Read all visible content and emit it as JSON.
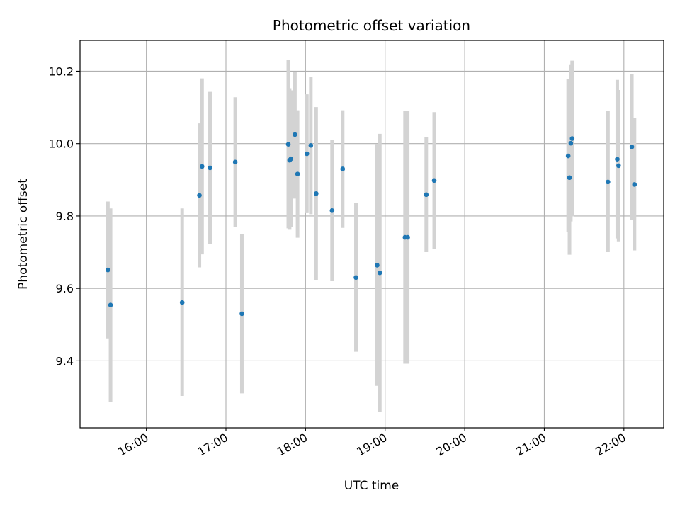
{
  "chart_data": {
    "type": "scatter",
    "title": "Photometric offset variation",
    "xlabel": "UTC time",
    "ylabel": "Photometric offset",
    "x_axis_type": "time",
    "xlim": [
      "15:10",
      "22:30"
    ],
    "ylim": [
      9.215,
      10.285
    ],
    "xticks": [
      "16:00",
      "17:00",
      "18:00",
      "19:00",
      "20:00",
      "21:00",
      "22:00"
    ],
    "yticks": [
      9.4,
      9.6,
      9.8,
      10.0,
      10.2
    ],
    "ytick_labels": [
      "9.4",
      "9.6",
      "9.8",
      "10.0",
      "10.2"
    ],
    "grid": true,
    "marker_color": "#1f77b4",
    "errorbar_color": "#d3d3d3",
    "points": [
      {
        "t": "15:31",
        "y": 9.651,
        "ymin": 9.462,
        "ymax": 9.84
      },
      {
        "t": "15:33",
        "y": 9.554,
        "ymin": 9.287,
        "ymax": 9.821
      },
      {
        "t": "16:27",
        "y": 9.561,
        "ymin": 9.303,
        "ymax": 9.821
      },
      {
        "t": "16:40",
        "y": 9.857,
        "ymin": 9.658,
        "ymax": 10.056
      },
      {
        "t": "16:42",
        "y": 9.937,
        "ymin": 9.694,
        "ymax": 10.18
      },
      {
        "t": "16:48",
        "y": 9.933,
        "ymin": 9.723,
        "ymax": 10.143
      },
      {
        "t": "17:07",
        "y": 9.949,
        "ymin": 9.77,
        "ymax": 10.128
      },
      {
        "t": "17:12",
        "y": 9.53,
        "ymin": 9.31,
        "ymax": 9.75
      },
      {
        "t": "17:47",
        "y": 9.998,
        "ymin": 9.766,
        "ymax": 10.232
      },
      {
        "t": "17:48",
        "y": 9.954,
        "ymin": 9.762,
        "ymax": 10.153
      },
      {
        "t": "17:49",
        "y": 9.958,
        "ymin": 9.77,
        "ymax": 10.147
      },
      {
        "t": "17:52",
        "y": 10.025,
        "ymin": 9.848,
        "ymax": 10.198
      },
      {
        "t": "17:54",
        "y": 9.916,
        "ymin": 9.74,
        "ymax": 10.092
      },
      {
        "t": "18:01",
        "y": 9.972,
        "ymin": 9.808,
        "ymax": 10.136
      },
      {
        "t": "18:04",
        "y": 9.995,
        "ymin": 9.805,
        "ymax": 10.185
      },
      {
        "t": "18:08",
        "y": 9.862,
        "ymin": 9.623,
        "ymax": 10.101
      },
      {
        "t": "18:20",
        "y": 9.815,
        "ymin": 9.62,
        "ymax": 10.01
      },
      {
        "t": "18:28",
        "y": 9.93,
        "ymin": 9.767,
        "ymax": 10.092
      },
      {
        "t": "18:38",
        "y": 9.63,
        "ymin": 9.425,
        "ymax": 9.835
      },
      {
        "t": "18:54",
        "y": 9.664,
        "ymin": 9.331,
        "ymax": 9.999
      },
      {
        "t": "18:56",
        "y": 9.643,
        "ymin": 9.259,
        "ymax": 10.027
      },
      {
        "t": "19:15",
        "y": 9.741,
        "ymin": 9.392,
        "ymax": 10.09
      },
      {
        "t": "19:17",
        "y": 9.741,
        "ymin": 9.392,
        "ymax": 10.09
      },
      {
        "t": "19:31",
        "y": 9.859,
        "ymin": 9.7,
        "ymax": 10.019
      },
      {
        "t": "19:37",
        "y": 9.898,
        "ymin": 9.71,
        "ymax": 10.087
      },
      {
        "t": "21:18",
        "y": 9.966,
        "ymin": 9.755,
        "ymax": 10.178
      },
      {
        "t": "21:19",
        "y": 9.906,
        "ymin": 9.693,
        "ymax": 10.119
      },
      {
        "t": "21:20",
        "y": 10.001,
        "ymin": 9.785,
        "ymax": 10.217
      },
      {
        "t": "21:21",
        "y": 10.014,
        "ymin": 9.799,
        "ymax": 10.229
      },
      {
        "t": "21:48",
        "y": 9.894,
        "ymin": 9.7,
        "ymax": 10.09
      },
      {
        "t": "21:55",
        "y": 9.957,
        "ymin": 9.738,
        "ymax": 10.176
      },
      {
        "t": "21:56",
        "y": 9.939,
        "ymin": 9.73,
        "ymax": 10.148
      },
      {
        "t": "22:06",
        "y": 9.991,
        "ymin": 9.79,
        "ymax": 10.192
      },
      {
        "t": "22:08",
        "y": 9.887,
        "ymin": 9.705,
        "ymax": 10.07
      }
    ]
  }
}
